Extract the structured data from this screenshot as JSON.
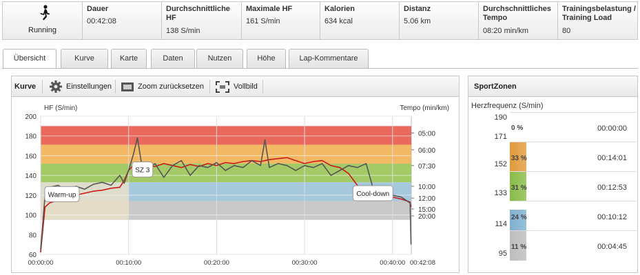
{
  "summary": {
    "sport": "Running",
    "cells": [
      {
        "label": "Dauer",
        "value": "00:42:08"
      },
      {
        "label": "Durchschnittliche HF",
        "value": "138   S/min"
      },
      {
        "label": "Maximale HF",
        "value": "161   S/min"
      },
      {
        "label": "Kalorien",
        "value": "634   kcal"
      },
      {
        "label": "Distanz",
        "value": "5.06   km"
      },
      {
        "label": "Durchschnittliches Tempo",
        "value": "08:20   min/km"
      },
      {
        "label": "Trainingsbelastung / Training Load",
        "value": "80"
      }
    ]
  },
  "tabs": [
    "Übersicht",
    "Kurve",
    "Karte",
    "Daten",
    "Nutzen",
    "Höhe",
    "Lap-Kommentare"
  ],
  "toolbar": {
    "title": "Kurve",
    "settings": "Einstellungen",
    "zoom_reset": "Zoom zurücksetzen",
    "fullscreen": "Vollbild"
  },
  "chart_data": {
    "type": "line",
    "ylabel": "HF (S/min)",
    "y2label": "Tempo (min/km)",
    "ylim": [
      60,
      200
    ],
    "yticks": [
      "200",
      "180",
      "160",
      "140",
      "120",
      "100",
      "80",
      "60"
    ],
    "y2ticks": [
      "05:00",
      "06:00",
      "07:30",
      "10:00",
      "12:00",
      "15:00",
      "20:00"
    ],
    "xticks": [
      "00:00:00",
      "00:10:00",
      "00:20:00",
      "00:30:00",
      "00:40:00",
      "00:42:08"
    ],
    "grid": true,
    "zone_colors": [
      "#e85c4f",
      "#f2b257",
      "#9cc65b",
      "#9ec3d9",
      "#c4c4c4"
    ],
    "annotations": [
      "Warm-up",
      "SZ 3",
      "Cool-down"
    ],
    "series": [
      {
        "name": "HF",
        "color": "#d01818",
        "x_min": [
          0,
          0.5,
          1,
          2,
          3,
          4,
          5,
          6,
          7,
          8,
          9,
          9.5,
          10,
          10.5,
          11,
          12,
          13,
          14,
          15,
          16,
          17,
          18,
          19,
          20,
          21,
          22,
          23,
          24,
          25,
          26,
          27,
          28,
          29,
          30,
          31,
          32,
          33,
          34,
          35,
          36,
          37,
          38,
          39,
          40,
          41,
          42,
          42.1
        ],
        "values": [
          62,
          108,
          112,
          115,
          118,
          120,
          122,
          124,
          125,
          127,
          128,
          135,
          145,
          150,
          148,
          150,
          149,
          152,
          150,
          148,
          151,
          149,
          152,
          150,
          153,
          152,
          154,
          155,
          154,
          156,
          157,
          158,
          155,
          152,
          154,
          155,
          150,
          148,
          142,
          130,
          124,
          121,
          119,
          118,
          116,
          113,
          108
        ]
      },
      {
        "name": "Tempo",
        "color": "#555555",
        "x_min": [
          0,
          0.5,
          1,
          2,
          3,
          4,
          5,
          6,
          7,
          8,
          9,
          9.5,
          10,
          10.5,
          11,
          11.5,
          12,
          13,
          14,
          15,
          16,
          17,
          18,
          19,
          20,
          21,
          22,
          23,
          24,
          25,
          25.5,
          26,
          27,
          28,
          29,
          30,
          31,
          32,
          33,
          34,
          35,
          36,
          37,
          38,
          39,
          40,
          41,
          42,
          42.1
        ],
        "values": [
          65,
          120,
          128,
          130,
          124,
          129,
          126,
          131,
          133,
          130,
          140,
          132,
          145,
          160,
          178,
          150,
          145,
          152,
          138,
          150,
          155,
          140,
          150,
          148,
          153,
          145,
          150,
          148,
          155,
          150,
          176,
          148,
          152,
          150,
          145,
          150,
          148,
          152,
          140,
          145,
          150,
          148,
          152,
          120,
          115,
          120,
          118,
          112,
          70
        ]
      }
    ]
  },
  "zones": {
    "title": "SportZonen",
    "subtitle": "Herzfrequenz (S/min)",
    "limits": [
      "190",
      "171",
      "152",
      "133",
      "114",
      "95"
    ],
    "rows": [
      {
        "pct": "0 %",
        "time": "00:00:00",
        "color": "#e85c4f",
        "fill": 0.0
      },
      {
        "pct": "33 %",
        "time": "00:14:01",
        "color": "#e09a3a",
        "fill": 1.0
      },
      {
        "pct": "31 %",
        "time": "00:12:53",
        "color": "#88bb48",
        "fill": 1.0
      },
      {
        "pct": "24 %",
        "time": "00:10:12",
        "color": "#7fb0cf",
        "fill": 0.72
      },
      {
        "pct": "11 %",
        "time": "00:04:45",
        "color": "#bdbdbd",
        "fill": 1.0
      }
    ]
  }
}
